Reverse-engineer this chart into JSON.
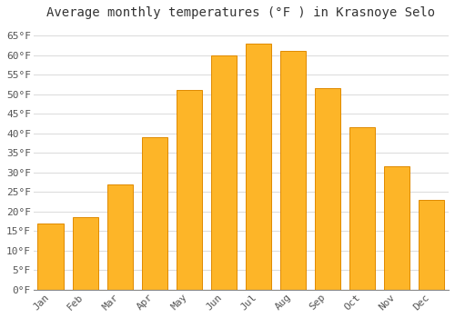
{
  "title": "Average monthly temperatures (°F ) in Krasnoye Selo",
  "months": [
    "Jan",
    "Feb",
    "Mar",
    "Apr",
    "May",
    "Jun",
    "Jul",
    "Aug",
    "Sep",
    "Oct",
    "Nov",
    "Dec"
  ],
  "values": [
    17,
    18.5,
    27,
    39,
    51,
    60,
    63,
    61,
    51.5,
    41.5,
    31.5,
    23
  ],
  "bar_color": "#FDB528",
  "bar_edge_color": "#E08A00",
  "background_color": "#FFFFFF",
  "grid_color": "#DDDDDD",
  "ytick_labels": [
    "0°F",
    "5°F",
    "10°F",
    "15°F",
    "20°F",
    "25°F",
    "30°F",
    "35°F",
    "40°F",
    "45°F",
    "50°F",
    "55°F",
    "60°F",
    "65°F"
  ],
  "ytick_values": [
    0,
    5,
    10,
    15,
    20,
    25,
    30,
    35,
    40,
    45,
    50,
    55,
    60,
    65
  ],
  "ylim": [
    0,
    68
  ],
  "title_fontsize": 10,
  "tick_fontsize": 8,
  "font_family": "monospace"
}
